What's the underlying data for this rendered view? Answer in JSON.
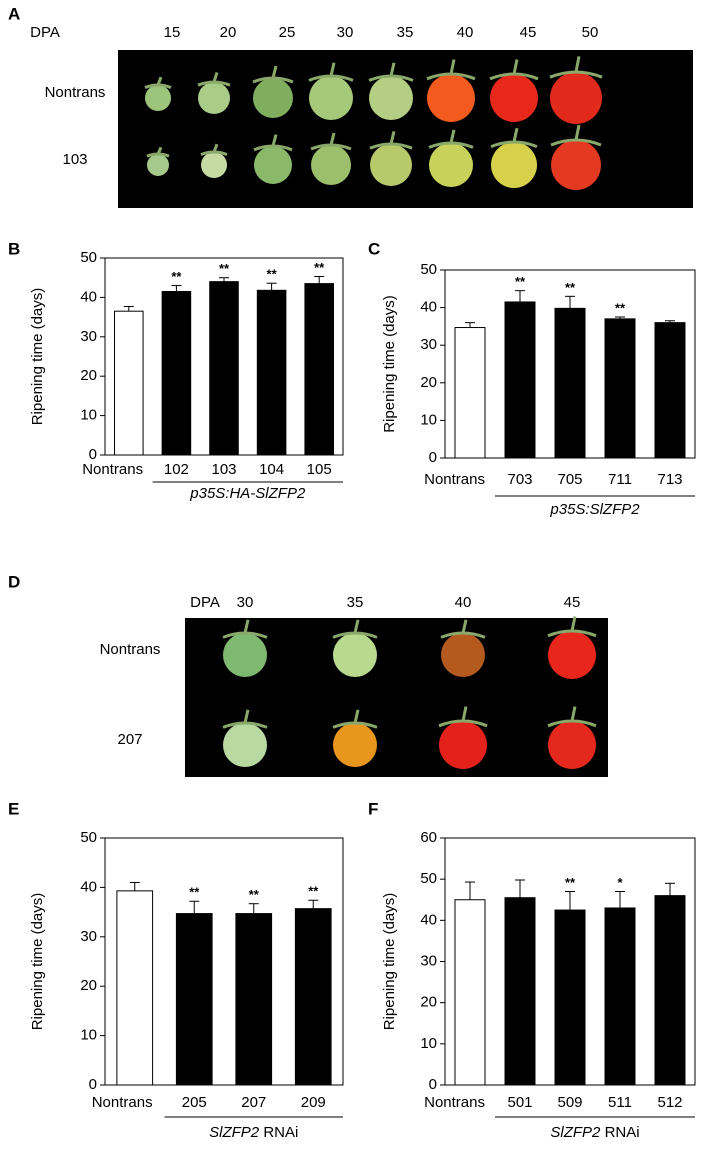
{
  "photo_panels": [
    {
      "panel_label": "A",
      "header_label": "DPA",
      "columns": [
        "15",
        "20",
        "25",
        "30",
        "35",
        "40",
        "45",
        "50"
      ],
      "rows": [
        "Nontrans",
        "103"
      ]
    },
    {
      "panel_label": "D",
      "header_label": "DPA",
      "columns": [
        "30",
        "35",
        "40",
        "45"
      ],
      "rows": [
        "Nontrans",
        "207"
      ]
    }
  ],
  "chart_data": [
    {
      "type": "bar",
      "panel_label": "B",
      "y_label": "Ripening time (days)",
      "categories": [
        "Nontrans",
        "102",
        "103",
        "104",
        "105"
      ],
      "values": [
        36.5,
        41.5,
        44,
        41.8,
        43.5
      ],
      "errors": [
        1.2,
        1.5,
        1,
        1.8,
        1.8
      ],
      "significance": [
        null,
        "**",
        "**",
        "**",
        "**"
      ],
      "colors": [
        "#ffffff",
        "#000000",
        "#000000",
        "#000000",
        "#000000"
      ],
      "group_label": "p35S:HA-SlZFP2",
      "ylim": [
        0,
        50
      ],
      "yticks": [
        0,
        10,
        20,
        30,
        40,
        50
      ]
    },
    {
      "type": "bar",
      "panel_label": "C",
      "y_label": "Ripening time (days)",
      "categories": [
        "Nontrans",
        "703",
        "705",
        "711",
        "713"
      ],
      "values": [
        34.7,
        41.5,
        39.8,
        37,
        36
      ],
      "errors": [
        1.3,
        3,
        3.2,
        0.5,
        0.5
      ],
      "significance": [
        null,
        "**",
        "**",
        "**",
        null
      ],
      "colors": [
        "#ffffff",
        "#000000",
        "#000000",
        "#000000",
        "#000000"
      ],
      "group_label": "p35S:SlZFP2",
      "ylim": [
        0,
        50
      ],
      "yticks": [
        0,
        10,
        20,
        30,
        40,
        50
      ]
    },
    {
      "type": "bar",
      "panel_label": "E",
      "y_label": "Ripening time (days)",
      "categories": [
        "Nontrans",
        "205",
        "207",
        "209"
      ],
      "values": [
        39.3,
        34.7,
        34.7,
        35.7
      ],
      "errors": [
        1.7,
        2.5,
        2,
        1.7
      ],
      "significance": [
        null,
        "**",
        "**",
        "**"
      ],
      "colors": [
        "#ffffff",
        "#000000",
        "#000000",
        "#000000"
      ],
      "group_label": "SlZFP2",
      "group_label_suffix": "RNAi",
      "ylim": [
        0,
        50
      ],
      "yticks": [
        0,
        10,
        20,
        30,
        40,
        50
      ]
    },
    {
      "type": "bar",
      "panel_label": "F",
      "y_label": "Ripening time (days)",
      "categories": [
        "Nontrans",
        "501",
        "509",
        "511",
        "512"
      ],
      "values": [
        45,
        45.5,
        42.5,
        43,
        46
      ],
      "errors": [
        4.3,
        4.3,
        4.5,
        4,
        3
      ],
      "significance": [
        null,
        null,
        "**",
        "*",
        null
      ],
      "colors": [
        "#ffffff",
        "#000000",
        "#000000",
        "#000000",
        "#000000"
      ],
      "group_label": "SlZFP2",
      "group_label_suffix": "RNAi",
      "ylim": [
        0,
        60
      ],
      "yticks": [
        0,
        10,
        20,
        30,
        40,
        50,
        60
      ]
    }
  ]
}
